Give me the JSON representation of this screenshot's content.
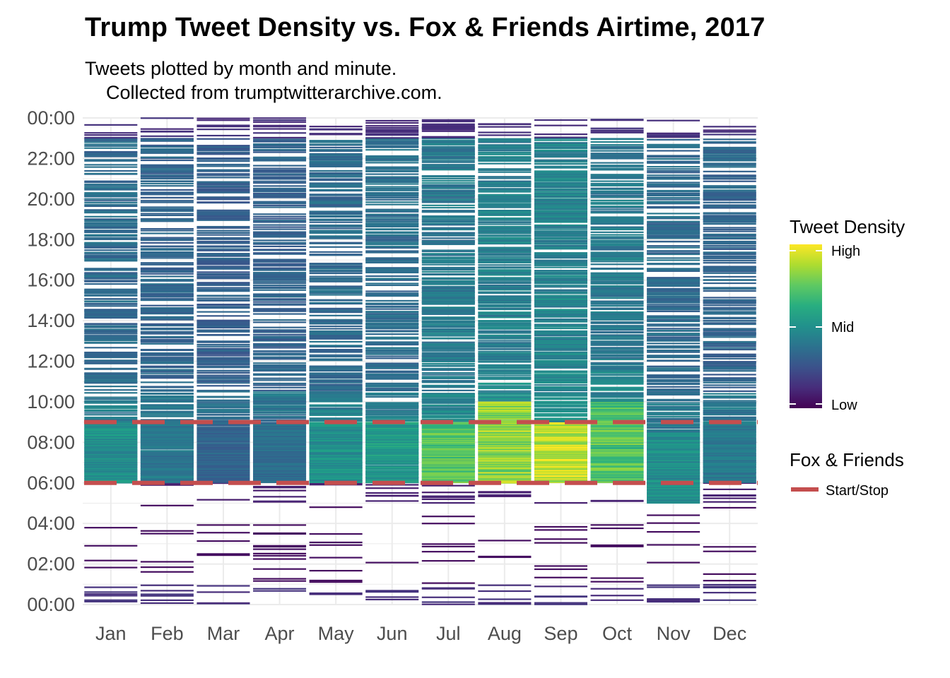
{
  "chart_data": {
    "type": "heatmap",
    "title": "Trump Tweet Density vs. Fox & Friends Airtime, 2017",
    "subtitle": "Tweets plotted by month and minute.\n    Collected from trumptwitterarchive.com.",
    "xlabel": "",
    "ylabel": "",
    "categories": [
      "Jan",
      "Feb",
      "Mar",
      "Apr",
      "May",
      "Jun",
      "Jul",
      "Aug",
      "Sep",
      "Oct",
      "Nov",
      "Dec"
    ],
    "y_tick_labels": [
      "00:00",
      "02:00",
      "04:00",
      "06:00",
      "08:00",
      "10:00",
      "12:00",
      "14:00",
      "16:00",
      "18:00",
      "20:00",
      "22:00",
      "00:00"
    ],
    "y_range_hours": [
      0,
      24
    ],
    "grid": true,
    "colormap": "viridis",
    "density_peak_by_month": [
      {
        "month": "Jan",
        "peak_density": 0.55,
        "peak_hours": [
          6,
          9
        ]
      },
      {
        "month": "Feb",
        "peak_density": 0.45,
        "peak_hours": [
          6,
          9
        ]
      },
      {
        "month": "Mar",
        "peak_density": 0.35,
        "peak_hours": [
          6,
          9
        ]
      },
      {
        "month": "Apr",
        "peak_density": 0.4,
        "peak_hours": [
          6,
          9
        ]
      },
      {
        "month": "May",
        "peak_density": 0.55,
        "peak_hours": [
          6,
          9
        ]
      },
      {
        "month": "Jun",
        "peak_density": 0.6,
        "peak_hours": [
          6,
          9
        ]
      },
      {
        "month": "Jul",
        "peak_density": 0.8,
        "peak_hours": [
          6,
          9
        ]
      },
      {
        "month": "Aug",
        "peak_density": 0.92,
        "peak_hours": [
          6,
          10
        ]
      },
      {
        "month": "Sep",
        "peak_density": 1.0,
        "peak_hours": [
          6,
          9
        ]
      },
      {
        "month": "Oct",
        "peak_density": 0.8,
        "peak_hours": [
          6,
          10
        ]
      },
      {
        "month": "Nov",
        "peak_density": 0.55,
        "peak_hours": [
          5,
          8.5
        ]
      },
      {
        "month": "Dec",
        "peak_density": 0.45,
        "peak_hours": [
          6,
          9
        ]
      }
    ],
    "reference_lines": [
      {
        "name": "Start/Stop",
        "hour": 6,
        "color": "#C44E4E",
        "style": "dashed"
      },
      {
        "name": "Start/Stop",
        "hour": 9,
        "color": "#C44E4E",
        "style": "dashed"
      }
    ],
    "legend": {
      "placement": "right",
      "density_title": "Tweet Density",
      "density_labels": [
        "High",
        "Mid",
        "Low"
      ],
      "fox_title": "Fox & Friends",
      "fox_label": "Start/Stop"
    }
  }
}
